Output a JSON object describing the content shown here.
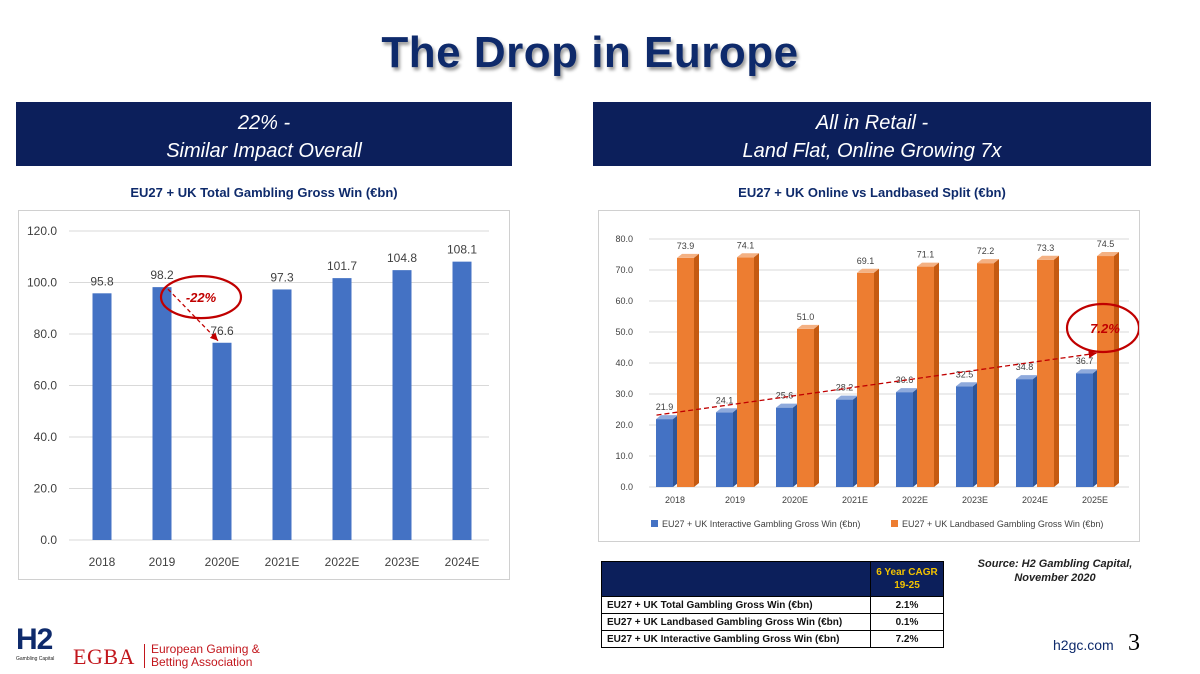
{
  "title": "The Drop in Europe",
  "left_banner": {
    "line1": "22% -",
    "line2": "Similar Impact Overall"
  },
  "right_banner": {
    "line1": "All in Retail -",
    "line2": "Land Flat, Online Growing 7x"
  },
  "colors": {
    "navy": "#0c1f5b",
    "blue_bar": "#4472c4",
    "orange_bar": "#ed7d31",
    "red": "#c00000",
    "gold": "#f2c200"
  },
  "chart_data": [
    {
      "type": "bar",
      "title": "EU27 + UK Total Gambling Gross Win (€bn)",
      "categories": [
        "2018",
        "2019",
        "2020E",
        "2021E",
        "2022E",
        "2023E",
        "2024E"
      ],
      "values": [
        95.8,
        98.2,
        76.6,
        97.3,
        101.7,
        104.8,
        108.1
      ],
      "value_labels": [
        "95.8",
        "98.2",
        "76.6",
        "97.3",
        "101.7",
        "104.8",
        "108.1"
      ],
      "ylim": [
        0,
        120
      ],
      "yticks": [
        "0.0",
        "20.0",
        "40.0",
        "60.0",
        "80.0",
        "100.0",
        "120.0"
      ],
      "grid": true,
      "annotation": {
        "text": "-22%",
        "from_category": "2019",
        "to_category": "2020E"
      }
    },
    {
      "type": "bar",
      "title": "EU27 + UK Online vs Landbased Split (€bn)",
      "categories": [
        "2018",
        "2019",
        "2020E",
        "2021E",
        "2022E",
        "2023E",
        "2024E",
        "2025E"
      ],
      "series": [
        {
          "name": "EU27 + UK Interactive Gambling Gross Win (€bn)",
          "values": [
            21.9,
            24.1,
            25.6,
            28.2,
            30.6,
            32.5,
            34.8,
            36.7
          ],
          "value_labels": [
            "21.9",
            "24.1",
            "25.6",
            "28.2",
            "30.6",
            "32.5",
            "34.8",
            "36.7"
          ]
        },
        {
          "name": "EU27 + UK Landbased Gambling Gross Win (€bn)",
          "values": [
            73.9,
            74.1,
            51.0,
            69.1,
            71.1,
            72.2,
            73.3,
            74.5
          ],
          "value_labels": [
            "73.9",
            "74.1",
            "51.0",
            "69.1",
            "71.1",
            "72.2",
            "73.3",
            "74.5"
          ]
        }
      ],
      "ylim": [
        0,
        80
      ],
      "yticks": [
        "0.0",
        "10.0",
        "20.0",
        "30.0",
        "40.0",
        "50.0",
        "60.0",
        "70.0",
        "80.0"
      ],
      "grid": true,
      "legend": "bottom",
      "annotation": {
        "text": "7.2%",
        "trend_series": "EU27 + UK Interactive Gambling Gross Win (€bn)"
      }
    }
  ],
  "cagr_table": {
    "header_line1": "6 Year CAGR",
    "header_line2": "19-25",
    "rows": [
      {
        "label": "EU27 + UK Total Gambling Gross Win (€bn)",
        "value": "2.1%"
      },
      {
        "label": "EU27 + UK Landbased Gambling Gross Win (€bn)",
        "value": "0.1%"
      },
      {
        "label": "EU27 + UK Interactive Gambling Gross Win (€bn)",
        "value": "7.2%"
      }
    ]
  },
  "source": {
    "line1": "Source: H2 Gambling Capital,",
    "line2": "November 2020"
  },
  "footer": {
    "h2_logo": "H2",
    "h2_logo_sub": "Gambling Capital",
    "egba_logo": "EGBA",
    "egba_line1": "European Gaming &",
    "egba_line2": "Betting Association",
    "url": "h2gc.com",
    "page_number": "3"
  }
}
